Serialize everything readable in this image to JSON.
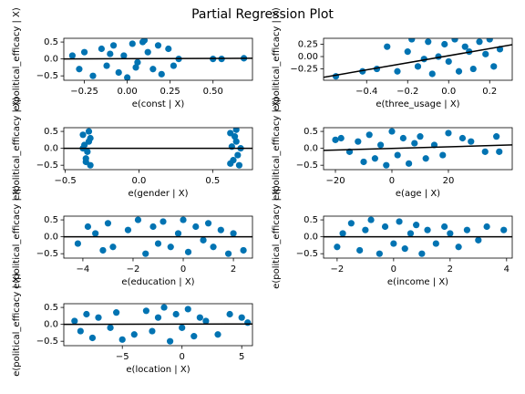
{
  "title": "Partial Regression Plot",
  "chart_data": [
    {
      "type": "scatter",
      "xlabel": "e(const | X)",
      "ylabel": "e(political_efficacy | X)",
      "color": "#0173b2",
      "x": [
        -0.32,
        -0.28,
        -0.25,
        -0.2,
        -0.15,
        -0.12,
        -0.08,
        -0.05,
        -0.02,
        0,
        0.03,
        0.06,
        0.09,
        0.12,
        0.15,
        0.18,
        0.2,
        0.24,
        0.27,
        0.3,
        0.5,
        0.55,
        0.68,
        -0.1,
        0.05,
        0.1
      ],
      "values": [
        0.1,
        -0.3,
        0.2,
        -0.5,
        0.3,
        -0.2,
        0.4,
        -0.4,
        0.1,
        -0.55,
        0.45,
        -0.1,
        0.5,
        0.2,
        -0.3,
        0.4,
        -0.45,
        0.3,
        -0.2,
        0,
        0,
        0,
        0.02,
        0.15,
        -0.25,
        0.55
      ],
      "fit": {
        "x": [
          -0.37,
          0.73
        ],
        "y": [
          0,
          0.02
        ]
      },
      "xlim": [
        -0.37,
        0.73
      ],
      "xticks": [
        {
          "value": -0.25,
          "label": "−0.25"
        },
        {
          "value": 0,
          "label": "0.00"
        },
        {
          "value": 0.25,
          "label": "0.25"
        },
        {
          "value": 0.5,
          "label": "0.50"
        }
      ],
      "ylim": [
        -0.63,
        0.61
      ],
      "yticks": [
        {
          "value": -0.5,
          "label": "−0.5"
        },
        {
          "value": 0,
          "label": "0.0"
        },
        0.5
      ]
    },
    {
      "type": "scatter",
      "xlabel": "e(three_usage | X)",
      "ylabel": "e(political_efficacy | X)",
      "color": "#0173b2",
      "x": [
        -0.55,
        -0.42,
        -0.35,
        -0.3,
        -0.25,
        -0.2,
        -0.18,
        -0.15,
        -0.1,
        -0.08,
        -0.05,
        -0.02,
        0,
        0.03,
        0.05,
        0.08,
        0.1,
        0.12,
        0.15,
        0.18,
        0.2,
        0.22,
        0.25,
        -0.12
      ],
      "values": [
        -0.4,
        -0.3,
        -0.25,
        0.2,
        -0.3,
        0.1,
        0.35,
        -0.2,
        0.3,
        -0.35,
        0,
        0.25,
        -0.1,
        0.35,
        -0.3,
        0.2,
        0.1,
        -0.25,
        0.3,
        0.05,
        0.35,
        -0.2,
        0.15,
        -0.05
      ],
      "fit": {
        "x": [
          -0.61,
          0.31
        ],
        "y": [
          -0.42,
          0.24
        ]
      },
      "xlim": [
        -0.61,
        0.31
      ],
      "xticks": [
        {
          "value": -0.4,
          "label": "−0.4"
        },
        {
          "value": -0.2,
          "label": "−0.2"
        },
        {
          "value": 0,
          "label": "0.0"
        },
        0.2
      ],
      "ylim": [
        -0.48,
        0.37
      ],
      "yticks": [
        {
          "value": -0.25,
          "label": "−0.25"
        },
        {
          "value": 0,
          "label": "0.00"
        },
        0.25
      ]
    },
    {
      "type": "scatter",
      "xlabel": "e(gender | X)",
      "ylabel": "e(political_efficacy | X)",
      "color": "#0173b2",
      "x": [
        -0.38,
        -0.36,
        -0.34,
        -0.33,
        -0.37,
        -0.35,
        -0.34,
        -0.36,
        -0.33,
        -0.38,
        0.62,
        0.64,
        0.66,
        0.68,
        0.63,
        0.65,
        0.67,
        0.62,
        0.66,
        0.69
      ],
      "values": [
        0.4,
        -0.3,
        0.2,
        -0.5,
        0.1,
        -0.1,
        0.5,
        -0.4,
        0.3,
        0,
        0.45,
        -0.35,
        0.2,
        -0.5,
        0.05,
        0.35,
        -0.2,
        -0.45,
        0.55,
        0
      ],
      "fit": {
        "x": [
          -0.51,
          0.77
        ],
        "y": [
          0,
          0
        ]
      },
      "xlim": [
        -0.51,
        0.77
      ],
      "xticks": [
        {
          "value": -0.5,
          "label": "−0.5"
        },
        {
          "value": 0,
          "label": "0.0"
        },
        0.5
      ],
      "ylim": [
        -0.63,
        0.61
      ],
      "yticks": [
        {
          "value": -0.5,
          "label": "−0.5"
        },
        {
          "value": 0,
          "label": "0.0"
        },
        0.5
      ]
    },
    {
      "type": "scatter",
      "xlabel": "e(age | X)",
      "ylabel": "e(political_efficacy | X)",
      "color": "#0173b2",
      "x": [
        -20,
        -18,
        -15,
        -12,
        -10,
        -8,
        -6,
        -4,
        -2,
        0,
        2,
        4,
        6,
        8,
        10,
        12,
        15,
        18,
        20,
        25,
        28,
        33,
        37,
        38
      ],
      "values": [
        0.25,
        0.3,
        -0.1,
        0.2,
        -0.4,
        0.4,
        -0.3,
        0.1,
        -0.5,
        0.5,
        -0.2,
        0.3,
        -0.45,
        0.15,
        0.35,
        -0.3,
        0.1,
        -0.2,
        0.45,
        0.3,
        0.2,
        -0.1,
        0.35,
        -0.1
      ],
      "fit": {
        "x": [
          -24.2,
          42.6
        ],
        "y": [
          -0.06,
          0.1
        ]
      },
      "xlim": [
        -24.2,
        42.6
      ],
      "xticks": [
        {
          "value": -20,
          "label": "−20"
        },
        0,
        20
      ],
      "ylim": [
        -0.63,
        0.61
      ],
      "yticks": [
        {
          "value": -0.5,
          "label": "−0.5"
        },
        {
          "value": 0,
          "label": "0.0"
        },
        0.5
      ]
    },
    {
      "type": "scatter",
      "xlabel": "e(education | X)",
      "ylabel": "e(political_efficacy | X)",
      "color": "#0173b2",
      "x": [
        -4.2,
        -3.8,
        -3.5,
        -3.2,
        -3,
        -2.8,
        -2.2,
        -1.8,
        -1.5,
        -1.2,
        -1,
        -0.8,
        -0.5,
        -0.2,
        0,
        0.2,
        0.5,
        0.8,
        1,
        1.2,
        1.5,
        1.8,
        2,
        2.4
      ],
      "values": [
        -0.2,
        0.3,
        0.1,
        -0.4,
        0.4,
        -0.3,
        0.2,
        0.5,
        -0.5,
        0.3,
        -0.2,
        0.45,
        -0.3,
        0.1,
        0.5,
        -0.45,
        0.3,
        -0.1,
        0.4,
        -0.3,
        0.2,
        -0.5,
        0.1,
        -0.4
      ],
      "fit": {
        "x": [
          -4.76,
          2.76
        ],
        "y": [
          0,
          0
        ]
      },
      "xlim": [
        -4.76,
        2.76
      ],
      "xticks": [
        {
          "value": -4,
          "label": "−4"
        },
        {
          "value": -2,
          "label": "−2"
        },
        0,
        2
      ],
      "ylim": [
        -0.63,
        0.61
      ],
      "yticks": [
        {
          "value": -0.5,
          "label": "−0.5"
        },
        {
          "value": 0,
          "label": "0.0"
        },
        0.5
      ]
    },
    {
      "type": "scatter",
      "xlabel": "e(income | X)",
      "ylabel": "e(political_efficacy | X)",
      "color": "#0173b2",
      "x": [
        -2,
        -1.8,
        -1.5,
        -1.2,
        -1,
        -0.8,
        -0.5,
        -0.3,
        0,
        0.2,
        0.4,
        0.6,
        0.8,
        1,
        1.2,
        1.5,
        1.8,
        2,
        2.3,
        2.6,
        3,
        3.3,
        3.9
      ],
      "values": [
        -0.3,
        0.1,
        0.4,
        -0.4,
        0.2,
        0.5,
        -0.5,
        0.3,
        -0.2,
        0.45,
        -0.35,
        0.1,
        0.35,
        -0.5,
        0.2,
        -0.2,
        0.3,
        0.1,
        -0.3,
        0.2,
        -0.1,
        0.3,
        0.2
      ],
      "fit": {
        "x": [
          -2.48,
          4.2
        ],
        "y": [
          0,
          0
        ]
      },
      "xlim": [
        -2.48,
        4.2
      ],
      "xticks": [
        {
          "value": -2,
          "label": "−2"
        },
        0,
        2,
        4
      ],
      "ylim": [
        -0.63,
        0.61
      ],
      "yticks": [
        {
          "value": -0.5,
          "label": "−0.5"
        },
        {
          "value": 0,
          "label": "0.0"
        },
        0.5
      ]
    },
    {
      "type": "scatter",
      "xlabel": "e(location | X)",
      "ylabel": "e(political_efficacy | X)",
      "color": "#0173b2",
      "x": [
        -9,
        -8.5,
        -8,
        -7.5,
        -7,
        -6,
        -5.5,
        -5,
        -4,
        -3,
        -2.5,
        -2,
        -1.5,
        -1,
        -0.5,
        0,
        0.5,
        1,
        1.5,
        2,
        3,
        4,
        5,
        5.5
      ],
      "values": [
        0.1,
        -0.2,
        0.3,
        -0.4,
        0.2,
        -0.1,
        0.35,
        -0.45,
        -0.3,
        0.4,
        -0.2,
        0.2,
        0.5,
        -0.5,
        0.3,
        -0.1,
        0.45,
        -0.35,
        0.2,
        0.1,
        -0.3,
        0.3,
        0.2,
        0.05
      ],
      "fit": {
        "x": [
          -9.9,
          5.9
        ],
        "y": [
          0,
          0.01
        ]
      },
      "xlim": [
        -9.9,
        5.9
      ],
      "xticks": [
        {
          "value": -5,
          "label": "−5"
        },
        0,
        5
      ],
      "ylim": [
        -0.63,
        0.61
      ],
      "yticks": [
        {
          "value": -0.5,
          "label": "−0.5"
        },
        {
          "value": 0,
          "label": "0.0"
        },
        0.5
      ]
    }
  ]
}
